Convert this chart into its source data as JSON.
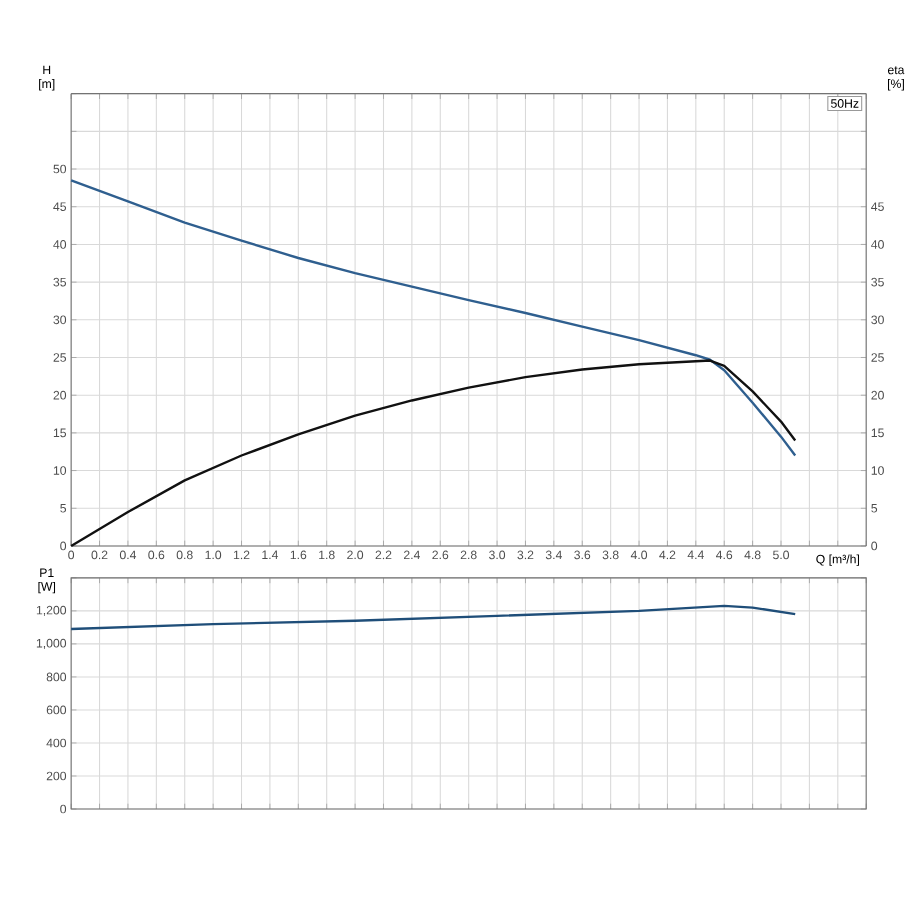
{
  "chart_data": [
    {
      "type": "line",
      "ylabel": "H [m]",
      "y2label": "eta [%]",
      "xlabel": "Q [m³/h]",
      "annotations": [
        "50Hz"
      ],
      "xlim": [
        0,
        5.6
      ],
      "xticks": [
        {
          "value": 0,
          "label": "0"
        },
        0.2,
        0.4,
        0.6,
        0.8,
        {
          "value": 1.0,
          "label": "1.0"
        },
        1.2,
        1.4,
        1.6,
        1.8,
        {
          "value": 2.0,
          "label": "2.0"
        },
        2.2,
        2.4,
        2.6,
        2.8,
        {
          "value": 3.0,
          "label": "3.0"
        },
        3.2,
        3.4,
        3.6,
        3.8,
        {
          "value": 4.0,
          "label": "4.0"
        },
        4.2,
        4.4,
        4.6,
        4.8,
        {
          "value": 5.0,
          "label": "5.0"
        },
        {
          "value": 5.2,
          "label": null
        },
        {
          "value": 5.4,
          "label": null
        },
        {
          "value": 5.6,
          "label": null
        }
      ],
      "ylim": [
        0,
        60
      ],
      "yticks": [
        0,
        5,
        10,
        15,
        20,
        25,
        30,
        35,
        40,
        45,
        50,
        {
          "value": 55,
          "label": null
        },
        {
          "value": 60,
          "label": null
        }
      ],
      "y2lim": [
        0,
        60
      ],
      "y2ticks": [
        0,
        5,
        10,
        15,
        20,
        25,
        30,
        35,
        40,
        45,
        {
          "value": 50,
          "label": null
        },
        {
          "value": 55,
          "label": null
        },
        {
          "value": 60,
          "label": null
        }
      ],
      "grid": true,
      "marker": "none",
      "line_style": "solid",
      "series": [
        {
          "color": "#2f5f8f",
          "x": [
            0,
            0.4,
            0.8,
            1.2,
            1.6,
            2.0,
            2.4,
            2.8,
            3.2,
            3.6,
            4.0,
            4.4,
            4.5,
            4.6,
            4.8,
            5.0,
            5.1
          ],
          "values": [
            48.5,
            45.7,
            42.9,
            40.5,
            38.2,
            36.2,
            34.4,
            32.6,
            30.9,
            29.1,
            27.3,
            25.3,
            24.7,
            23.3,
            19,
            14.5,
            12
          ]
        },
        {
          "color": "#111111",
          "axis": "y2",
          "x": [
            0,
            0.4,
            0.8,
            1.2,
            1.6,
            2.0,
            2.4,
            2.8,
            3.2,
            3.6,
            4.0,
            4.4,
            4.5,
            4.6,
            4.8,
            5.0,
            5.1
          ],
          "values": [
            0,
            4.5,
            8.7,
            12,
            14.8,
            17.3,
            19.3,
            21.0,
            22.4,
            23.4,
            24.1,
            24.5,
            24.6,
            23.9,
            20.5,
            16.5,
            14
          ]
        }
      ]
    },
    {
      "type": "line",
      "ylabel": "P1 [W]",
      "tick_labels": "y",
      "xlim": [
        0,
        5.6
      ],
      "xticks": [
        0,
        0.2,
        0.4,
        0.6,
        0.8,
        1.0,
        1.2,
        1.4,
        1.6,
        1.8,
        2.0,
        2.2,
        2.4,
        2.6,
        2.8,
        3.0,
        3.2,
        3.4,
        3.6,
        3.8,
        4.0,
        4.2,
        4.4,
        4.6,
        4.8,
        5.0,
        5.2,
        5.4,
        5.6
      ],
      "ylim": [
        0,
        1400
      ],
      "yticks": [
        0,
        200,
        400,
        600,
        800,
        {
          "value": 1000,
          "label": "1,000"
        },
        {
          "value": 1200,
          "label": "1,200"
        },
        {
          "value": 1400,
          "label": null
        }
      ],
      "grid": true,
      "marker": "none",
      "line_style": "solid",
      "series": [
        {
          "color": "#1f4e79",
          "x": [
            0,
            1.0,
            2.0,
            3.0,
            4.0,
            4.6,
            4.8,
            5.1
          ],
          "values": [
            1090,
            1120,
            1140,
            1170,
            1200,
            1230,
            1220,
            1180
          ]
        }
      ]
    }
  ]
}
